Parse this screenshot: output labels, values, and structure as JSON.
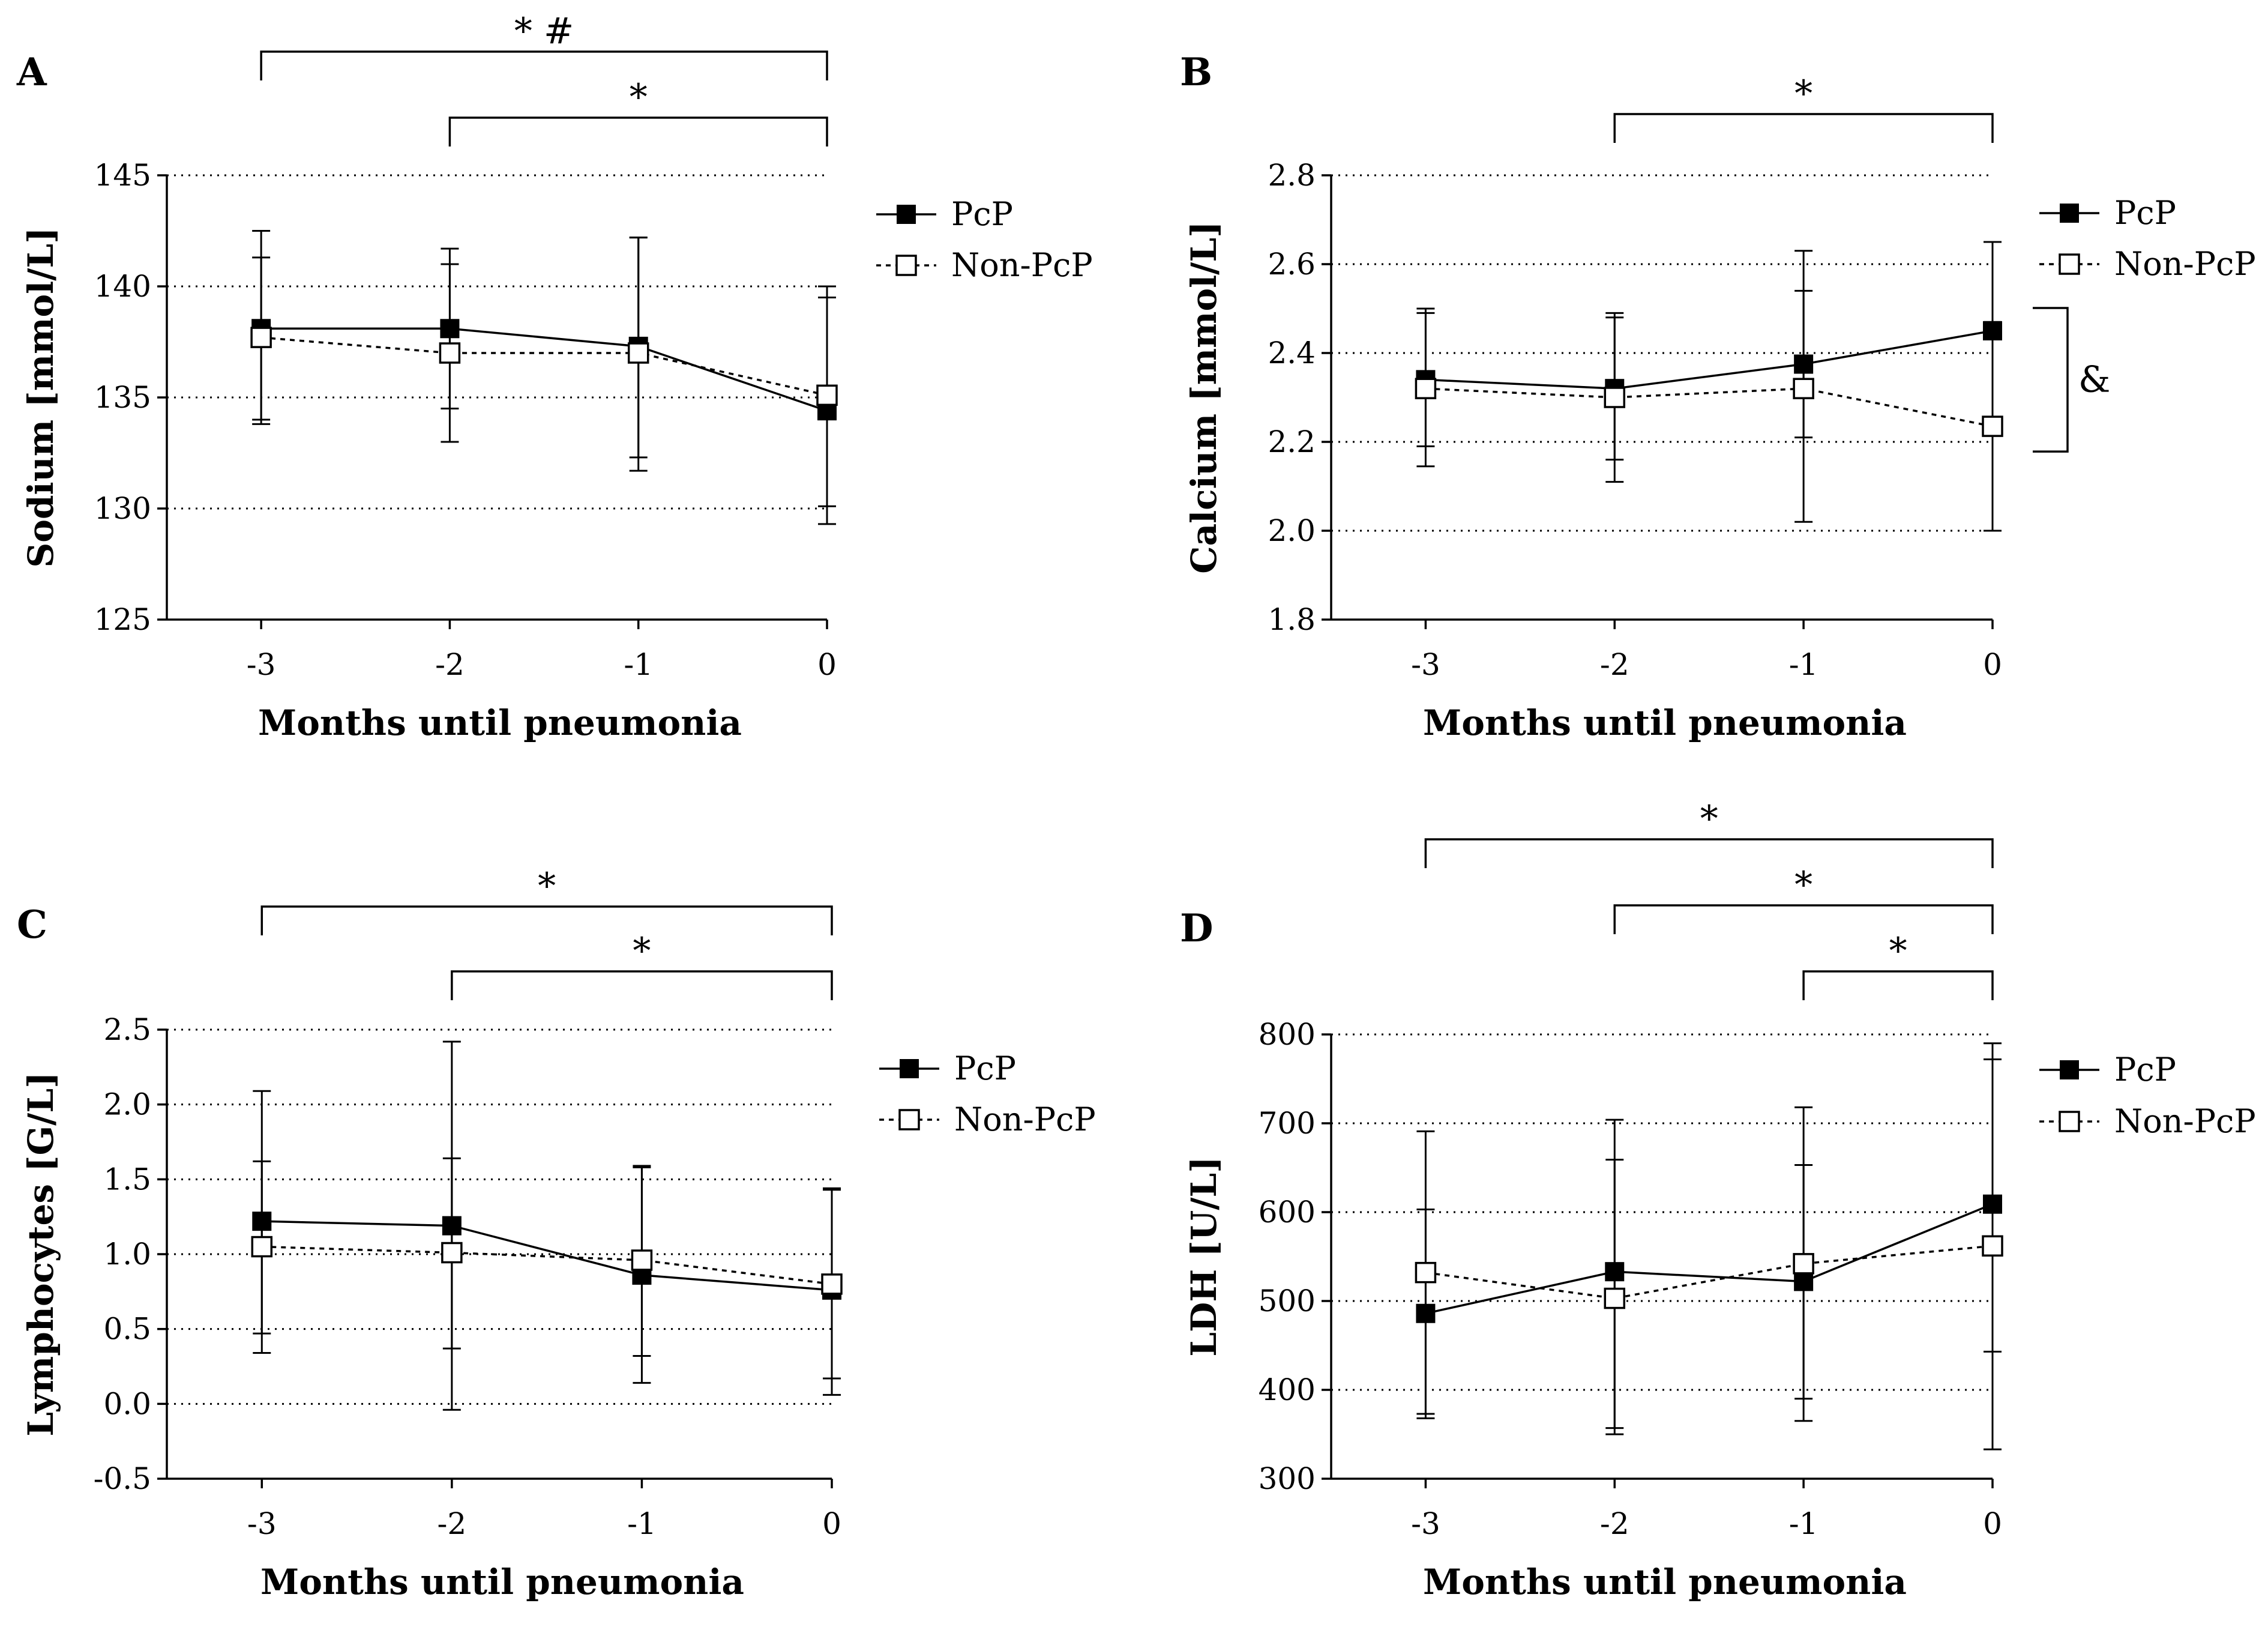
{
  "colors": {
    "ink": "#000000",
    "background": "#ffffff",
    "open_marker_fill": "#ffffff"
  },
  "chart_data": [
    {
      "type": "line",
      "panel": "A",
      "xlabel": "Months until pneumonia",
      "ylabel": "Sodium [mmol/L]",
      "x": [
        -3,
        -2,
        -1,
        0
      ],
      "x_tick_labels": [
        "-3",
        "-2",
        "-1",
        "0"
      ],
      "xlim": [
        -3.5,
        0
      ],
      "ylim": [
        125,
        145
      ],
      "y_ticks": [
        125,
        130,
        135,
        140,
        145
      ],
      "y_tick_labels": [
        "125",
        "130",
        "135",
        "140",
        "145"
      ],
      "grid": "dotted horizontal",
      "legend": "right",
      "series": [
        {
          "name": "PcP",
          "style": "solid",
          "marker": "filled-square",
          "values": [
            138.1,
            138.1,
            137.3,
            134.4
          ],
          "err_low": [
            133.8,
            134.5,
            132.3,
            129.3
          ],
          "err_high": [
            142.5,
            141.7,
            142.2,
            139.5
          ]
        },
        {
          "name": "Non-PcP",
          "style": "dashed",
          "marker": "open-square",
          "values": [
            137.7,
            137.0,
            137.0,
            135.1
          ],
          "err_low": [
            134.0,
            133.0,
            131.7,
            130.1
          ],
          "err_high": [
            141.3,
            141.0,
            142.2,
            140.0
          ]
        }
      ],
      "significance": [
        {
          "from": -3,
          "to": 0,
          "label": "* #"
        },
        {
          "from": -2,
          "to": 0,
          "label": "*"
        }
      ]
    },
    {
      "type": "line",
      "panel": "B",
      "xlabel": "Months until pneumonia",
      "ylabel": "Calcium [mmol/L]",
      "x": [
        -3,
        -2,
        -1,
        0
      ],
      "x_tick_labels": [
        "-3",
        "-2",
        "-1",
        "0"
      ],
      "xlim": [
        -3.5,
        0
      ],
      "ylim": [
        1.8,
        2.8
      ],
      "y_ticks": [
        1.8,
        2.0,
        2.2,
        2.4,
        2.6,
        2.8
      ],
      "y_tick_labels": [
        "1.8",
        "2.0",
        "2.2",
        "2.4",
        "2.6",
        "2.8"
      ],
      "grid": "dotted horizontal",
      "legend": "right",
      "series": [
        {
          "name": "PcP",
          "style": "solid",
          "marker": "filled-square",
          "values": [
            2.34,
            2.32,
            2.375,
            2.45
          ],
          "err_low": [
            2.19,
            2.16,
            2.21,
            2.24
          ],
          "err_high": [
            2.49,
            2.48,
            2.54,
            2.65
          ]
        },
        {
          "name": "Non-PcP",
          "style": "dashed",
          "marker": "open-square",
          "values": [
            2.32,
            2.3,
            2.32,
            2.235
          ],
          "err_low": [
            2.145,
            2.11,
            2.02,
            2.0
          ],
          "err_high": [
            2.5,
            2.49,
            2.63,
            2.47
          ]
        }
      ],
      "significance": [
        {
          "from": -2,
          "to": 0,
          "label": "*"
        }
      ],
      "group_annotation": {
        "label": "&",
        "between_values": [
          2.45,
          2.235
        ]
      }
    },
    {
      "type": "line",
      "panel": "C",
      "xlabel": "Months until pneumonia",
      "ylabel": "Lymphocytes [G/L]",
      "x": [
        -3,
        -2,
        -1,
        0
      ],
      "x_tick_labels": [
        "-3",
        "-2",
        "-1",
        "0"
      ],
      "xlim": [
        -3.5,
        0
      ],
      "ylim": [
        -0.5,
        2.5
      ],
      "y_ticks": [
        -0.5,
        0.0,
        0.5,
        1.0,
        1.5,
        2.0,
        2.5
      ],
      "y_tick_labels": [
        "-0.5",
        "0.0",
        "0.5",
        "1.0",
        "1.5",
        "2.0",
        "2.5"
      ],
      "grid": "dotted horizontal",
      "legend": "right",
      "series": [
        {
          "name": "PcP",
          "style": "solid",
          "marker": "filled-square",
          "values": [
            1.22,
            1.19,
            0.86,
            0.76
          ],
          "err_low": [
            0.34,
            -0.04,
            0.14,
            0.06
          ],
          "err_high": [
            2.09,
            2.42,
            1.58,
            1.43
          ]
        },
        {
          "name": "Non-PcP",
          "style": "dashed",
          "marker": "open-square",
          "values": [
            1.05,
            1.01,
            0.96,
            0.8
          ],
          "err_low": [
            0.47,
            0.37,
            0.32,
            0.17
          ],
          "err_high": [
            1.62,
            1.64,
            1.59,
            1.44
          ]
        }
      ],
      "significance": [
        {
          "from": -3,
          "to": 0,
          "label": "*"
        },
        {
          "from": -2,
          "to": 0,
          "label": "*"
        }
      ]
    },
    {
      "type": "line",
      "panel": "D",
      "xlabel": "Months until pneumonia",
      "ylabel": "LDH [U/L]",
      "x": [
        -3,
        -2,
        -1,
        0
      ],
      "x_tick_labels": [
        "-3",
        "-2",
        "-1",
        "0"
      ],
      "xlim": [
        -3.5,
        0
      ],
      "ylim": [
        300,
        800
      ],
      "y_ticks": [
        300,
        400,
        500,
        600,
        700,
        800
      ],
      "y_tick_labels": [
        "300",
        "400",
        "500",
        "600",
        "700",
        "800"
      ],
      "grid": "dotted horizontal",
      "legend": "right",
      "series": [
        {
          "name": "PcP",
          "style": "solid",
          "marker": "filled-square",
          "values": [
            486,
            533,
            522,
            609
          ],
          "err_low": [
            368,
            357,
            390,
            443
          ],
          "err_high": [
            603,
            704,
            653,
            772
          ]
        },
        {
          "name": "Non-PcP",
          "style": "dashed",
          "marker": "open-square",
          "values": [
            532,
            503,
            542,
            562
          ],
          "err_low": [
            373,
            350,
            365,
            333
          ],
          "err_high": [
            691,
            659,
            718,
            790
          ]
        }
      ],
      "significance": [
        {
          "from": -3,
          "to": 0,
          "label": "*"
        },
        {
          "from": -2,
          "to": 0,
          "label": "*"
        },
        {
          "from": -1,
          "to": 0,
          "label": "*"
        }
      ]
    }
  ]
}
